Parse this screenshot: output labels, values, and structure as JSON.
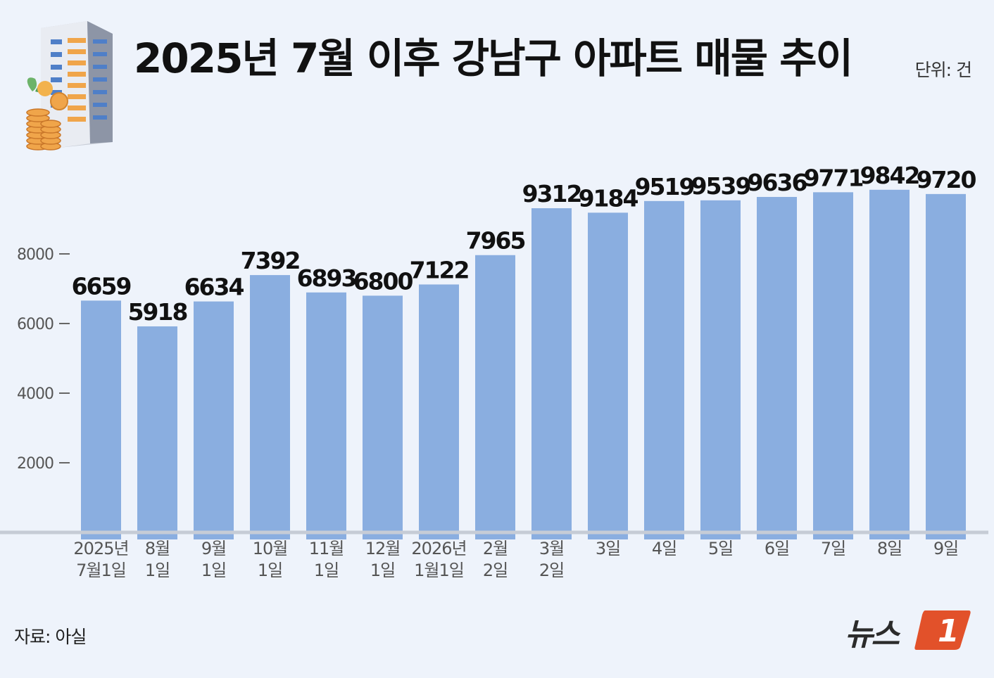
{
  "title": "2025년 7월 이후 강남구 아파트 매물 추이",
  "unit": "단위: 건",
  "source": "자료: 아실",
  "logo": {
    "text": "뉴스",
    "mark": "1"
  },
  "colors": {
    "bar": "#8aaee0",
    "background": "#eef3fb",
    "baseline": "#c6ccd6",
    "logo_accent": "#e2512a"
  },
  "chart_data": {
    "type": "bar",
    "categories": [
      [
        "2025년",
        "7월1일"
      ],
      [
        "8월",
        "1일"
      ],
      [
        "9월",
        "1일"
      ],
      [
        "10월",
        "1일"
      ],
      [
        "11월",
        "1일"
      ],
      [
        "12월",
        "1일"
      ],
      [
        "2026년",
        "1월1일"
      ],
      [
        "2월",
        "2일"
      ],
      [
        "3월",
        "2일"
      ],
      [
        "3일"
      ],
      [
        "4일"
      ],
      [
        "5일"
      ],
      [
        "6일"
      ],
      [
        "7일"
      ],
      [
        "8일"
      ],
      [
        "9일"
      ]
    ],
    "values": [
      6659,
      5918,
      6634,
      7392,
      6893,
      6800,
      7122,
      7965,
      9312,
      9184,
      9519,
      9539,
      9636,
      9771,
      9842,
      9720
    ],
    "yticks": [
      2000,
      4000,
      6000,
      8000
    ],
    "ylim": [
      0,
      10000
    ],
    "grid": false,
    "legend": "none"
  }
}
